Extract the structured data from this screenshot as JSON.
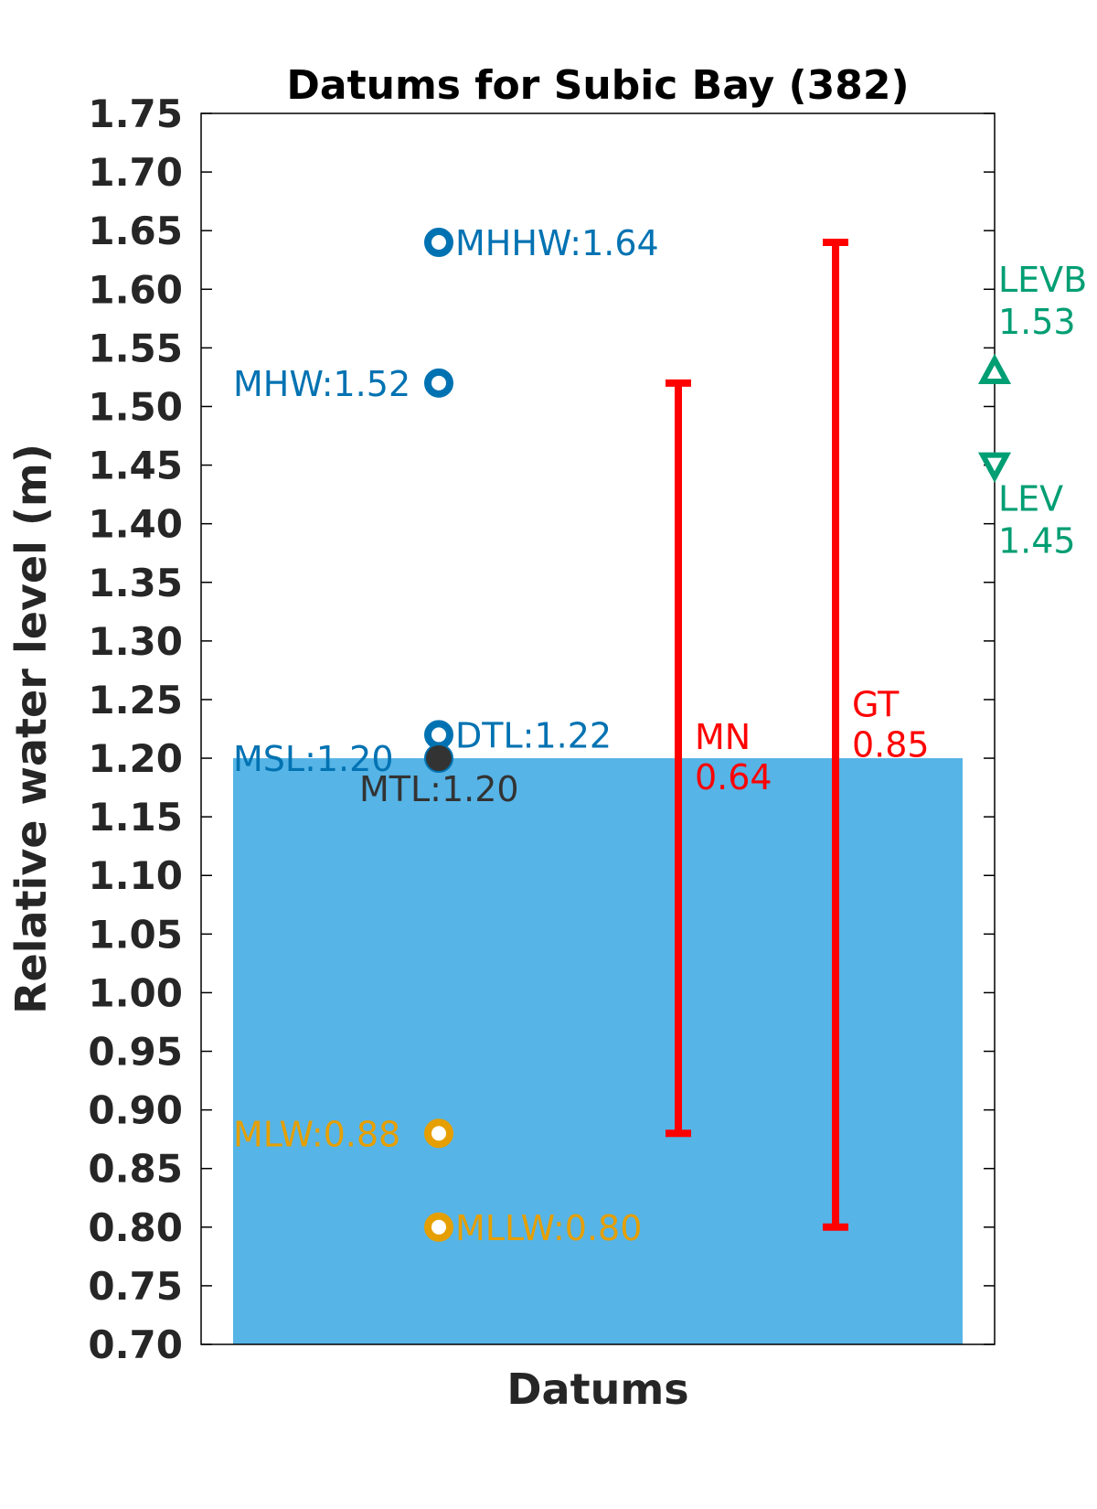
{
  "chart_data": {
    "type": "scatter",
    "title": "Datums for Subic Bay (382)",
    "xlabel": "Datums",
    "ylabel": "Relative water level (m)",
    "ylim": [
      0.7,
      1.75
    ],
    "yticks": [
      "0.70",
      "0.75",
      "0.80",
      "0.85",
      "0.90",
      "0.95",
      "1.00",
      "1.05",
      "1.10",
      "1.15",
      "1.20",
      "1.25",
      "1.30",
      "1.35",
      "1.40",
      "1.45",
      "1.50",
      "1.55",
      "1.60",
      "1.65",
      "1.70",
      "1.75"
    ],
    "grid": false,
    "legend": "none",
    "msl_fill": {
      "value": 1.2,
      "color": "#56b4e6"
    },
    "datums": [
      {
        "name": "MHHW",
        "value": 1.64,
        "label": "MHHW:1.64",
        "color": "#0072b2",
        "label_side": "right"
      },
      {
        "name": "MHW",
        "value": 1.52,
        "label": "MHW:1.52",
        "color": "#0072b2",
        "label_side": "left"
      },
      {
        "name": "DTL",
        "value": 1.22,
        "label": "DTL:1.22",
        "color": "#0072b2",
        "label_side": "right"
      },
      {
        "name": "MSL",
        "value": 1.2,
        "label": "MSL:1.20",
        "color": "#0072b2",
        "label_side": "left"
      },
      {
        "name": "MTL",
        "value": 1.2,
        "label": "MTL:1.20",
        "color": "#333333",
        "label_side": "below"
      },
      {
        "name": "MLW",
        "value": 0.88,
        "label": "MLW:0.88",
        "color": "#e69f00",
        "label_side": "left"
      },
      {
        "name": "MLLW",
        "value": 0.8,
        "label": "MLLW:0.80",
        "color": "#e69f00",
        "label_side": "right"
      }
    ],
    "ranges": [
      {
        "name": "MN",
        "low": 0.88,
        "high": 1.52,
        "label1": "MN",
        "label2": "0.64",
        "color": "#ff0000"
      },
      {
        "name": "GT",
        "low": 0.8,
        "high": 1.64,
        "label1": "GT",
        "label2": "0.85",
        "color": "#ff0000"
      }
    ],
    "extremes": [
      {
        "name": "LEVB",
        "value": 1.53,
        "label1": "LEVB",
        "label2": "1.53",
        "marker": "triangle-up",
        "color": "#009e73"
      },
      {
        "name": "LEV",
        "value": 1.45,
        "label1": "LEV",
        "label2": "1.45",
        "marker": "triangle-down",
        "color": "#009e73"
      }
    ]
  }
}
